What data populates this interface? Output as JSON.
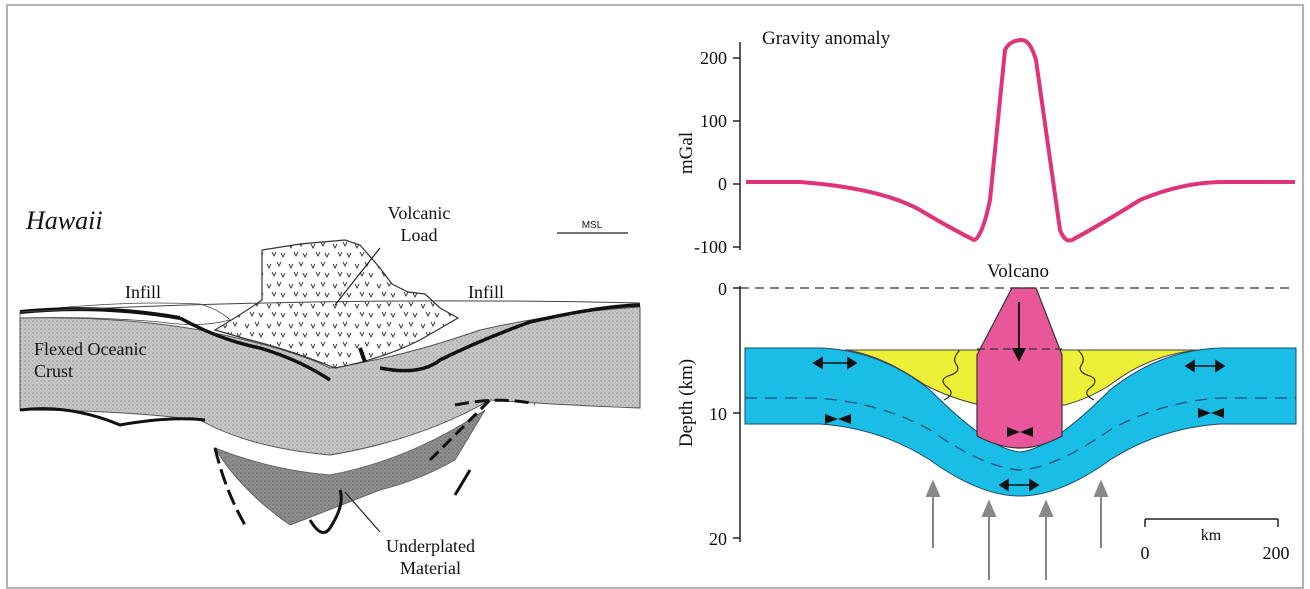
{
  "left_panel": {
    "title": "Hawaii",
    "labels": {
      "volcanic_load": [
        "Volcanic",
        "Load"
      ],
      "msl": "MSL",
      "infill_left": "Infill",
      "infill_right": "Infill",
      "flexed_crust": [
        "Flexed Oceanic",
        "Crust"
      ],
      "underplated": [
        "Underplated",
        "Material"
      ]
    }
  },
  "gravity_panel": {
    "title": "Gravity anomaly",
    "ylabel": "mGal",
    "yticks": [
      "200",
      "100",
      "0",
      "-100"
    ]
  },
  "depth_panel": {
    "volcano_label": "Volcano",
    "ylabel": "Depth  (km)",
    "yticks": [
      "0",
      "10",
      "20"
    ],
    "scale_bar": {
      "label": "km",
      "start": "0",
      "end": "200"
    }
  },
  "colors": {
    "gravity_curve": "#e0337a",
    "crust": "#19bde6",
    "infill": "#eef038",
    "volcano": "#e8579a",
    "border": "#9a9a9a"
  }
}
